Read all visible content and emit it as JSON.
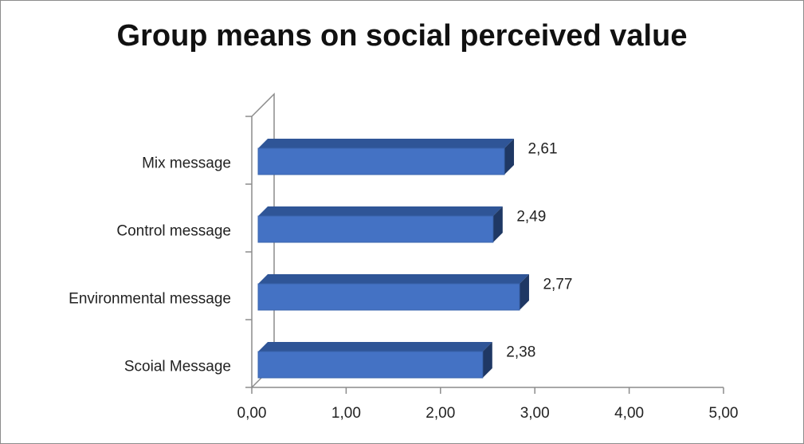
{
  "chart_data": {
    "type": "bar",
    "orientation": "horizontal",
    "title": "Group means on social perceived value",
    "categories": [
      "Scoial Message",
      "Environmental message",
      "Control message",
      "Mix message"
    ],
    "values": [
      2.38,
      2.77,
      2.49,
      2.61
    ],
    "value_labels": [
      "2,38",
      "2,77",
      "2,49",
      "2,61"
    ],
    "xlim": [
      0,
      5
    ],
    "xticks": [
      0,
      1,
      2,
      3,
      4,
      5
    ],
    "xtick_labels": [
      "0,00",
      "1,00",
      "2,00",
      "3,00",
      "4,00",
      "5,00"
    ],
    "grid": false,
    "legend": "none",
    "style": "3d",
    "colors": {
      "bar_front": "#4472c4",
      "bar_top": "#2f5597",
      "bar_side": "#1f3864"
    }
  }
}
